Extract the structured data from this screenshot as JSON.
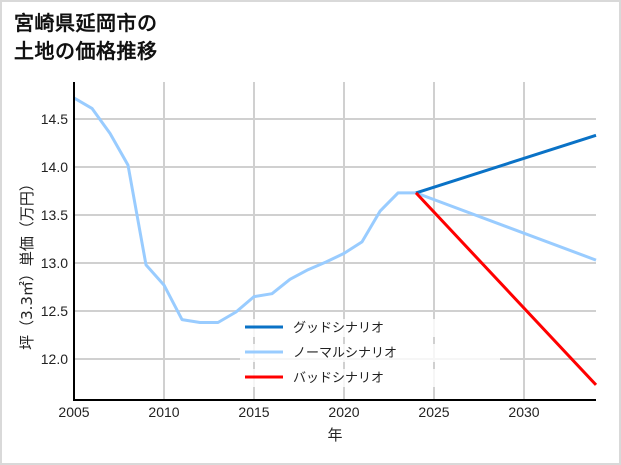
{
  "title": {
    "line1": "宮崎県延岡市の",
    "line2": "土地の価格推移"
  },
  "chart_data": {
    "type": "line",
    "title": "宮崎県延岡市の土地の価格推移",
    "xlabel": "年",
    "ylabel": "坪（3.3㎡）単価（万円）",
    "xlim": [
      2005,
      2034
    ],
    "ylim": [
      11.6,
      14.85
    ],
    "xticks": [
      2005,
      2010,
      2015,
      2020,
      2025,
      2030
    ],
    "yticks": [
      12.0,
      12.5,
      13.0,
      13.5,
      14.0,
      14.5
    ],
    "ytick_labels": [
      "12.0",
      "12.5",
      "13.0",
      "13.5",
      "14.0",
      "14.5"
    ],
    "grid": true,
    "legend_position": "lower center",
    "series": [
      {
        "name": "グッドシナリオ",
        "color": "#0a72c6",
        "x": [
          2024,
          2034
        ],
        "values": [
          13.73,
          14.33
        ]
      },
      {
        "name": "ノーマルシナリオ",
        "color": "#99ccff",
        "x": [
          2005,
          2006,
          2007,
          2008,
          2009,
          2010,
          2011,
          2012,
          2013,
          2014,
          2015,
          2016,
          2017,
          2018,
          2019,
          2020,
          2021,
          2022,
          2023,
          2024,
          2034
        ],
        "values": [
          14.72,
          14.61,
          14.35,
          14.02,
          12.98,
          12.77,
          12.41,
          12.38,
          12.38,
          12.49,
          12.65,
          12.68,
          12.83,
          12.93,
          13.01,
          13.1,
          13.22,
          13.54,
          13.73,
          13.73,
          13.03
        ]
      },
      {
        "name": "バッドシナリオ",
        "color": "#ff0000",
        "x": [
          2024,
          2034
        ],
        "values": [
          13.73,
          11.73
        ]
      }
    ]
  }
}
